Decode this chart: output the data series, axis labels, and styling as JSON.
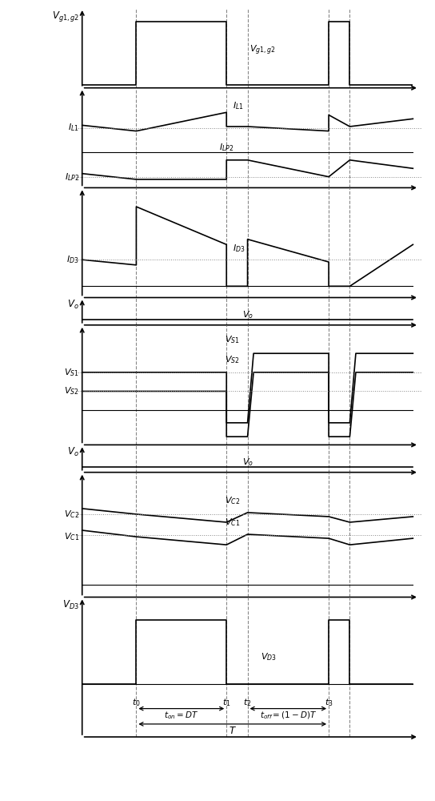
{
  "t0": 0.18,
  "t1": 0.48,
  "t2": 0.55,
  "t3": 0.82,
  "t4": 0.89,
  "tend": 1.05,
  "dashed_color": "#888888",
  "signal_color": "#000000",
  "background": "#ffffff"
}
